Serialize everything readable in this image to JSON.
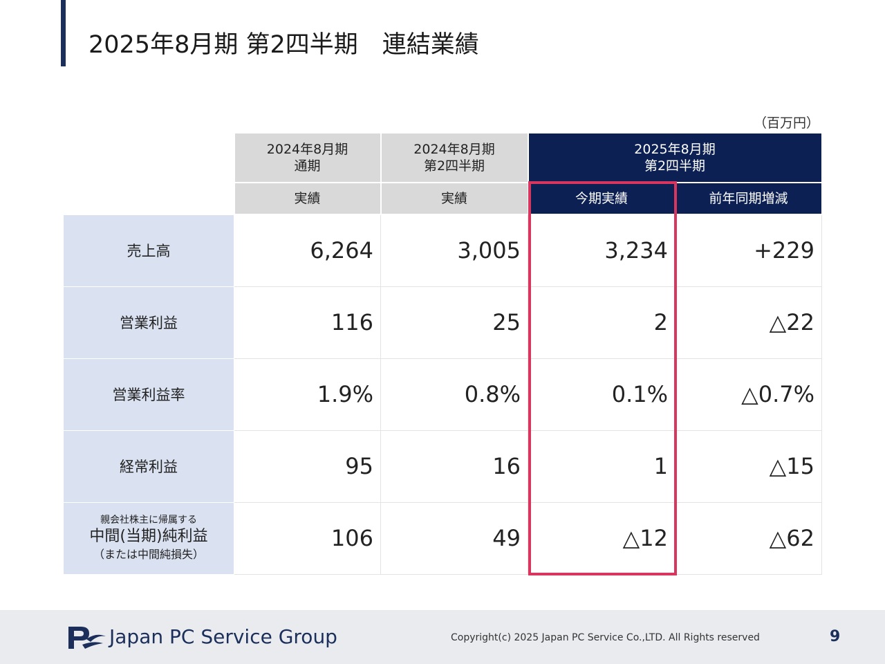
{
  "title": "2025年8月期 第2四半期　連結業績",
  "unit": "（百万円）",
  "columns": {
    "fy2024_full": {
      "line1": "2024年8月期",
      "line2": "通期",
      "sub": "実績"
    },
    "fy2024_q2": {
      "line1": "2024年8月期",
      "line2": "第2四半期",
      "sub": "実績"
    },
    "fy2025_q2": {
      "line1": "2025年8月期",
      "line2": "第2四半期",
      "sub_current": "今期実績",
      "sub_change": "前年同期増減"
    }
  },
  "rows": [
    {
      "label": "売上高",
      "values": [
        "6,264",
        "3,005",
        "3,234",
        "+229"
      ]
    },
    {
      "label": "営業利益",
      "values": [
        "116",
        "25",
        "2",
        "△22"
      ]
    },
    {
      "label": "営業利益率",
      "values": [
        "1.9%",
        "0.8%",
        "0.1%",
        "△0.7%"
      ]
    },
    {
      "label": "経常利益",
      "values": [
        "95",
        "16",
        "1",
        "△15"
      ]
    },
    {
      "label_small": "親会社株主に帰属する",
      "label": "中間(当期)純利益",
      "label_sub": "（または中間純損失）",
      "values": [
        "106",
        "49",
        "△12",
        "△62"
      ]
    }
  ],
  "footer": {
    "company": "Japan PC Service Group",
    "copyright": "Copyright(c) 2025 Japan PC Service Co.,LTD. All Rights reserved",
    "page": "9"
  },
  "colors": {
    "navy": "#0c2054",
    "highlight": "#d9365f",
    "label_bg": "#dae1f1",
    "header_gray": "#d9d9d9"
  }
}
